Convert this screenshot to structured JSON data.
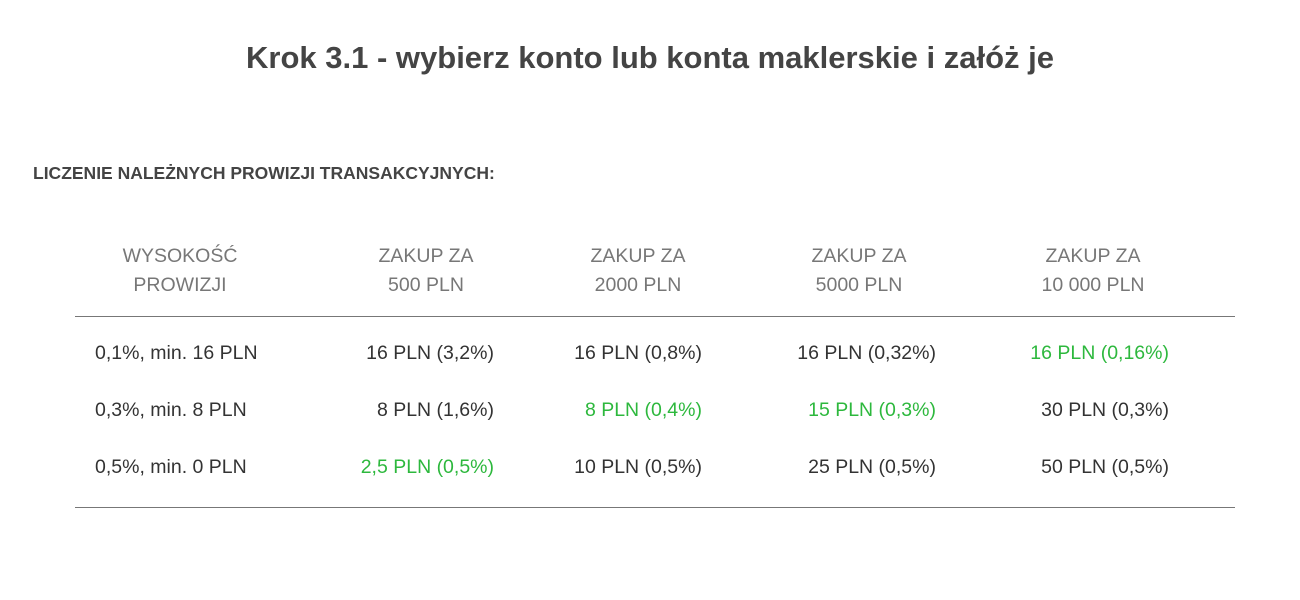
{
  "header": {
    "title": "Krok 3.1 - wybierz konto lub konta maklerskie i załóż je",
    "subtitle": "LICZENIE NALEŻNYCH PROWIZJI TRANSAKCYJNYCH:"
  },
  "table": {
    "columns": [
      [
        "WYSOKOŚĆ",
        "PROWIZJI"
      ],
      [
        "ZAKUP ZA",
        "500 PLN"
      ],
      [
        "ZAKUP ZA",
        "2000 PLN"
      ],
      [
        "ZAKUP ZA",
        "5000 PLN"
      ],
      [
        "ZAKUP ZA",
        "10 000 PLN"
      ]
    ],
    "rows": [
      [
        "0,1%, min. 16 PLN",
        "16 PLN (3,2%)",
        "16 PLN (0,8%)",
        "16 PLN (0,32%)",
        "16 PLN (0,16%)"
      ],
      [
        "0,3%, min. 8 PLN",
        "8 PLN (1,6%)",
        "8 PLN (0,4%)",
        "15 PLN (0,3%)",
        "30 PLN (0,3%)"
      ],
      [
        "0,5%, min. 0 PLN",
        "2,5 PLN (0,5%)",
        "10 PLN (0,5%)",
        "25 PLN (0,5%)",
        "50 PLN (0,5%)"
      ]
    ],
    "highlight_color": "#2db83d",
    "highlighted": [
      [
        0,
        4
      ],
      [
        1,
        2
      ],
      [
        1,
        3
      ],
      [
        2,
        1
      ]
    ]
  }
}
